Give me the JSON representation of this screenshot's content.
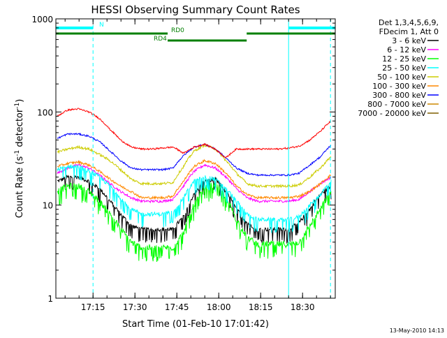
{
  "chart_data": {
    "type": "line",
    "title": "HESSI Observing Summary Count Rates",
    "xlabel": "Start Time (01-Feb-10 17:01:42)",
    "ylabel_parts": [
      "Count Rate (s",
      "-1",
      " detector",
      "-1",
      ")"
    ],
    "x_ticks": [
      "17:15",
      "17:30",
      "17:45",
      "18:00",
      "18:15",
      "18:30"
    ],
    "x_range": [
      "17:01:42",
      "18:41:42"
    ],
    "y_scale": "log",
    "y_ticks": [
      "1",
      "10",
      "100",
      "1000"
    ],
    "ylim": [
      1,
      1000
    ],
    "grid": false,
    "legend_position": "right",
    "legend_header": [
      "Det 1,3,4,5,6,9,",
      "FDecim 1, Att 0"
    ],
    "footer_date": "13-May-2010 14:13",
    "flags": [
      {
        "label": "N",
        "color": "#00ffff",
        "segments": [
          [
            "17:01:42",
            "17:15:00"
          ],
          [
            "18:25:00",
            "18:41:42"
          ]
        ]
      },
      {
        "label": "RD0",
        "color": "#007f00",
        "segments": [
          [
            "17:01:42",
            "17:41:42"
          ],
          [
            "18:10:00",
            "18:41:42"
          ]
        ]
      },
      {
        "label": "RD4",
        "color": "#007f00",
        "segments": [
          [
            "17:41:42",
            "18:10:00"
          ]
        ]
      }
    ],
    "saa_markers": [
      {
        "time": "17:01:42",
        "style": "solid"
      },
      {
        "time": "17:15:00",
        "style": "dashed"
      },
      {
        "time": "18:25:00",
        "style": "solid"
      },
      {
        "time": "18:40:00",
        "style": "dashed"
      }
    ],
    "series": [
      {
        "name": "3 - 6 keV",
        "color": "#000000",
        "values": [
          18,
          20,
          20,
          18,
          15,
          11,
          8,
          6,
          5.5,
          5.5,
          5.5,
          5.5,
          7.5,
          13,
          18,
          19,
          14,
          9,
          6.5,
          5.5,
          5.5,
          5.5,
          5.5,
          6.5,
          9,
          13,
          16
        ],
        "noise_floor": 0.05
      },
      {
        "name": "6 - 12 keV",
        "color": "#ff00ff",
        "values": [
          22,
          25,
          27,
          25,
          21,
          17,
          14,
          12,
          11,
          11,
          11,
          11.5,
          16,
          23,
          27,
          25,
          20,
          15,
          12,
          11,
          11,
          11,
          11,
          11.5,
          14,
          17,
          20
        ],
        "noise_floor": 0.03
      },
      {
        "name": "12 - 25 keV",
        "color": "#00ff00",
        "values": [
          14,
          16,
          16,
          14,
          11,
          8,
          5.5,
          4,
          3.5,
          3.5,
          3.5,
          3.5,
          5,
          10,
          15,
          17,
          12,
          7,
          4.5,
          3.8,
          3.8,
          3.8,
          3.8,
          4,
          6,
          9,
          14
        ],
        "noise_floor": 0.08
      },
      {
        "name": "25 - 50 keV",
        "color": "#00ffff",
        "values": [
          24,
          26,
          26,
          23,
          20,
          16,
          12,
          9,
          8,
          8,
          8,
          8.5,
          12,
          18,
          20,
          19,
          15,
          11,
          8,
          7,
          7,
          7,
          7,
          7.5,
          10,
          13,
          18
        ],
        "noise_floor": 0.05
      },
      {
        "name": "50 - 100 keV",
        "color": "#cccc00",
        "values": [
          37,
          40,
          42,
          40,
          35,
          30,
          24,
          19,
          17,
          17,
          17,
          17.5,
          26,
          38,
          44,
          40,
          30,
          22,
          17,
          16,
          16,
          16,
          16,
          16.5,
          20,
          25,
          33
        ],
        "noise_floor": 0.03
      },
      {
        "name": "100 - 300 keV",
        "color": "#ff8800",
        "values": [
          26,
          28,
          29,
          27,
          23,
          19,
          16,
          14,
          12,
          12,
          12,
          12.5,
          18,
          26,
          30,
          28,
          22,
          16,
          13,
          12,
          12,
          12,
          12,
          12.5,
          14,
          17,
          21
        ],
        "noise_floor": 0.03
      },
      {
        "name": "300 - 800 keV",
        "color": "#0000ff",
        "values": [
          52,
          58,
          58,
          55,
          48,
          38,
          30,
          25,
          24,
          24,
          24,
          25,
          34,
          42,
          45,
          40,
          32,
          25,
          22,
          21,
          21,
          21,
          21,
          22,
          27,
          33,
          44
        ],
        "noise_floor": 0.02
      },
      {
        "name": "800 - 7000 keV",
        "color": "#cc8800",
        "values": [],
        "noise_floor": 0
      },
      {
        "name": "7000 - 20000 keV",
        "color": "#7f5f00",
        "values": [],
        "noise_floor": 0
      },
      {
        "name": "",
        "color": "#ff0000",
        "legend": false,
        "values": [
          90,
          105,
          108,
          100,
          85,
          65,
          50,
          42,
          40,
          40,
          41,
          42,
          36,
          42,
          45,
          40,
          32,
          40,
          40,
          40,
          40,
          40,
          41,
          43,
          50,
          62,
          80
        ],
        "noise_floor": 0.02
      }
    ]
  }
}
